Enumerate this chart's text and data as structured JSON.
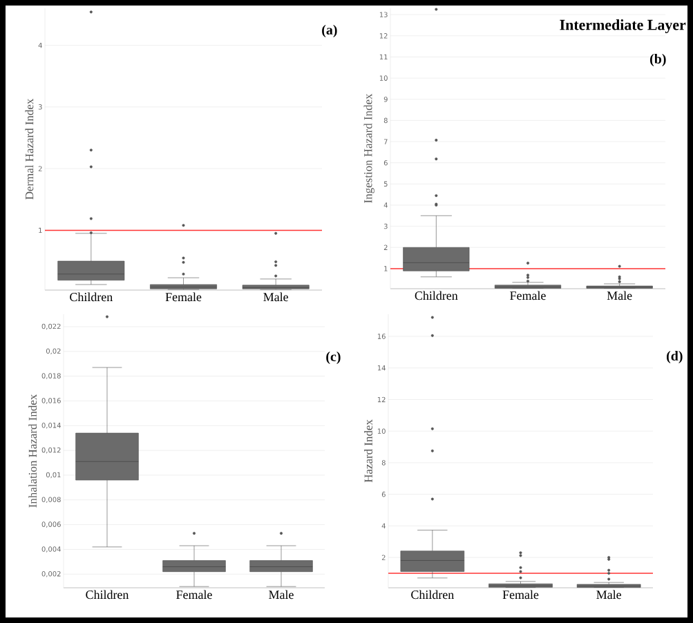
{
  "chart_data": [
    {
      "type": "box",
      "categories": [
        "Children",
        "Female",
        "Male"
      ],
      "ylabel": "Dermal Hazard Index",
      "ylim": [
        0.03,
        4.6
      ],
      "yticks": [
        1,
        2,
        3,
        4
      ],
      "grid": "y",
      "annotations": [
        "(a)"
      ],
      "ref_lines": [
        {
          "axis": "y",
          "value": 1,
          "color": "#ff3333"
        }
      ],
      "series": [
        {
          "color": "#6b6b6b",
          "boxes": [
            {
              "low": 0.12,
              "q1": 0.19,
              "median": 0.29,
              "q3": 0.5,
              "high": 0.95,
              "outliers": [
                4.54,
                2.3,
                2.03,
                1.19,
                0.96
              ]
            },
            {
              "low": 0.04,
              "q1": 0.05,
              "median": 0.08,
              "q3": 0.12,
              "high": 0.23,
              "outliers": [
                1.08,
                0.55,
                0.48,
                0.29
              ]
            },
            {
              "low": 0.04,
              "q1": 0.05,
              "median": 0.07,
              "q3": 0.11,
              "high": 0.21,
              "outliers": [
                0.95,
                0.49,
                0.43,
                0.26
              ]
            }
          ]
        }
      ]
    },
    {
      "type": "box",
      "title": "Intermediate Layer",
      "categories": [
        "Children",
        "Female",
        "Male"
      ],
      "ylabel": "Ingestion Hazard Index",
      "ylim": [
        0.05,
        13.3
      ],
      "yticks": [
        1,
        2,
        3,
        4,
        5,
        6,
        7,
        8,
        9,
        10,
        11,
        12,
        13
      ],
      "grid": "y",
      "annotations": [
        "(b)"
      ],
      "ref_lines": [
        {
          "axis": "y",
          "value": 1,
          "color": "#ff3333"
        }
      ],
      "series": [
        {
          "color": "#6b6b6b",
          "boxes": [
            {
              "low": 0.61,
              "q1": 0.89,
              "median": 1.28,
              "q3": 2.0,
              "high": 3.5,
              "outliers": [
                13.25,
                7.07,
                6.18,
                4.45,
                4.05,
                4.0
              ]
            },
            {
              "low": 0.07,
              "q1": 0.07,
              "median": 0.13,
              "q3": 0.22,
              "high": 0.35,
              "outliers": [
                1.26,
                0.69,
                0.58,
                0.41
              ]
            },
            {
              "low": 0.07,
              "q1": 0.07,
              "median": 0.12,
              "q3": 0.18,
              "high": 0.28,
              "outliers": [
                1.11,
                0.61,
                0.52,
                0.38
              ]
            }
          ]
        }
      ]
    },
    {
      "type": "box",
      "categories": [
        "Children",
        "Female",
        "Male"
      ],
      "ylabel": "Inhalation Hazard Index",
      "ylim": [
        0.0009,
        0.023
      ],
      "yticks": [
        {
          "value": 0.002,
          "label": "0,002"
        },
        {
          "value": 0.004,
          "label": "0,004"
        },
        {
          "value": 0.006,
          "label": "0,006"
        },
        {
          "value": 0.008,
          "label": "0,008"
        },
        {
          "value": 0.01,
          "label": "0,01"
        },
        {
          "value": 0.012,
          "label": "0,012"
        },
        {
          "value": 0.014,
          "label": "0,014"
        },
        {
          "value": 0.016,
          "label": "0,016"
        },
        {
          "value": 0.018,
          "label": "0,018"
        },
        {
          "value": 0.02,
          "label": "0,02"
        },
        {
          "value": 0.022,
          "label": "0,022"
        }
      ],
      "grid": "y",
      "annotations": [
        "(c)"
      ],
      "series": [
        {
          "color": "#6b6b6b",
          "boxes": [
            {
              "low": 0.0042,
              "q1": 0.0096,
              "median": 0.0111,
              "q3": 0.0134,
              "high": 0.0187,
              "outliers": [
                0.0228
              ]
            },
            {
              "low": 0.001,
              "q1": 0.0022,
              "median": 0.0026,
              "q3": 0.0031,
              "high": 0.0043,
              "outliers": [
                0.0053
              ]
            },
            {
              "low": 0.001,
              "q1": 0.0022,
              "median": 0.0026,
              "q3": 0.0031,
              "high": 0.0043,
              "outliers": [
                0.0053
              ]
            }
          ]
        }
      ]
    },
    {
      "type": "box",
      "categories": [
        "Children",
        "Female",
        "Male"
      ],
      "ylabel": "Hazard Index",
      "ylim": [
        0.08,
        17.4
      ],
      "yticks": [
        2,
        4,
        6,
        8,
        10,
        12,
        14,
        16
      ],
      "grid": "y",
      "annotations": [
        "(d)"
      ],
      "ref_lines": [
        {
          "axis": "y",
          "value": 1,
          "color": "#ff3333"
        }
      ],
      "series": [
        {
          "color": "#6b6b6b",
          "boxes": [
            {
              "low": 0.7,
              "q1": 1.11,
              "median": 1.81,
              "q3": 2.41,
              "high": 3.73,
              "outliers": [
                17.2,
                16.05,
                10.15,
                8.75,
                5.7
              ]
            },
            {
              "low": 0.1,
              "q1": 0.11,
              "median": 0.2,
              "q3": 0.33,
              "high": 0.48,
              "outliers": [
                2.3,
                2.12,
                1.36,
                1.11,
                0.71
              ]
            },
            {
              "low": 0.1,
              "q1": 0.1,
              "median": 0.18,
              "q3": 0.3,
              "high": 0.42,
              "outliers": [
                2.0,
                1.88,
                1.19,
                1.0,
                0.63
              ]
            }
          ]
        }
      ]
    }
  ]
}
